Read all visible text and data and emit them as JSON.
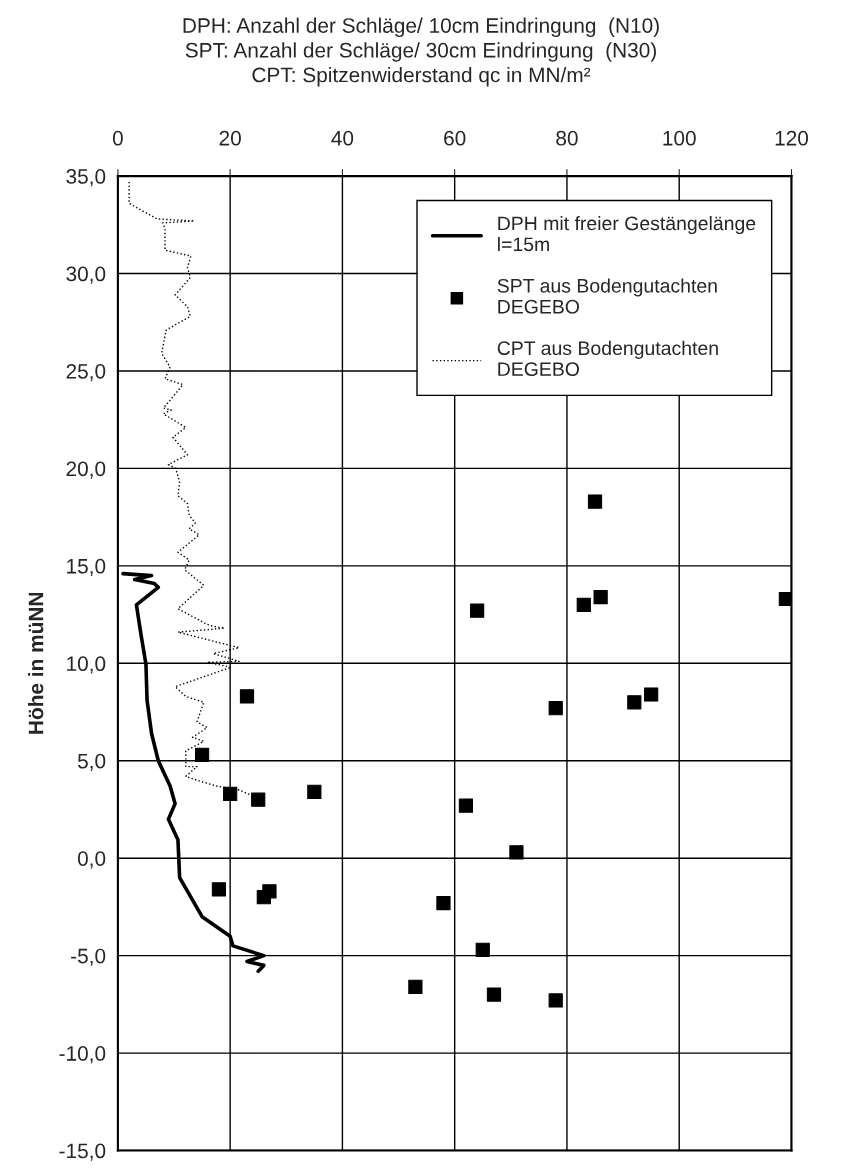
{
  "chart_data": {
    "type": "line",
    "title": "DPH: Anzahl der Schläge/ 10cm Eindringung  (N10)\nSPT: Anzahl der Schläge/ 30cm Eindringung  (N30)\nCPT: Spitzenwiderstand qc in MN/m²",
    "ylabel": "Höhe in müNN",
    "xlim": [
      0,
      120
    ],
    "xticks": [
      0,
      20,
      40,
      60,
      80,
      100,
      120
    ],
    "ylim": [
      -15,
      35
    ],
    "yticks": [
      {
        "value": 35,
        "label": "35,0"
      },
      {
        "value": 30,
        "label": "30,0"
      },
      {
        "value": 25,
        "label": "25,0"
      },
      {
        "value": 20,
        "label": "20,0"
      },
      {
        "value": 15,
        "label": "15,0"
      },
      {
        "value": 10,
        "label": "10,0"
      },
      {
        "value": 5,
        "label": "5,0"
      },
      {
        "value": 0,
        "label": "0,0"
      },
      {
        "value": -5,
        "label": "-5,0"
      },
      {
        "value": -10,
        "label": "-10,0"
      },
      {
        "value": -15,
        "label": "-15,0"
      }
    ],
    "grid": true,
    "legend": "top right",
    "series": [
      {
        "name": "DPH mit freier Gestängelänge\nl=15m",
        "color": "#000000",
        "line_style": "solid",
        "marker": "none",
        "x": [
          0.9,
          6,
          3,
          6.5,
          7.2,
          3.3,
          4.1,
          5.0,
          5.2,
          6.0,
          7.2,
          9.3,
          10.2,
          9.0,
          10.7,
          11,
          13,
          15,
          20,
          20.5,
          26,
          23,
          26,
          25
        ],
        "values": [
          14.6,
          14.5,
          14.3,
          14.1,
          13.9,
          13.0,
          11.5,
          9.95,
          8.1,
          6.4,
          5.0,
          3.7,
          2.8,
          2.0,
          0.95,
          -1,
          -2,
          -3,
          -4,
          -4.5,
          -5,
          -5.3,
          -5.5,
          -5.8
        ]
      },
      {
        "name": "SPT aus Bodengutachten\nDEGEBO",
        "type": "scatter",
        "color": "#000000",
        "marker": "square",
        "x": [
          85,
          64,
          83,
          86,
          119,
          23,
          78,
          92,
          95,
          15,
          20,
          25,
          35,
          62,
          71,
          18,
          27,
          26,
          58,
          65,
          53,
          67,
          78
        ],
        "values": [
          18.3,
          12.7,
          13.0,
          13.4,
          13.3,
          8.3,
          7.7,
          8.0,
          8.4,
          5.3,
          3.3,
          3.0,
          3.4,
          2.7,
          0.3,
          -1.6,
          -1.7,
          -2.0,
          -2.3,
          -4.7,
          -6.6,
          -7.0,
          -7.3
        ]
      },
      {
        "name": "CPT aus Bodengutachten\nDEGEBO",
        "color": "#000000",
        "line_style": "dotted",
        "marker": "none",
        "x": [
          2.0,
          2.0,
          7,
          13.6,
          8,
          8.4,
          8.4,
          13,
          12.4,
          12.9,
          10.2,
          12.4,
          12.9,
          8.6,
          7.8,
          9.3,
          8.4,
          11.6,
          9.3,
          8.1,
          9.5,
          8.1,
          12.1,
          9.8,
          12.4,
          9.0,
          10.3,
          11.0,
          10.7,
          12.4,
          12.7,
          13.8,
          12.7,
          14.5,
          10.7,
          12.7,
          11.9,
          15.3,
          10.7,
          15.9,
          17.0,
          19.0,
          10.7,
          21.6,
          17.0,
          21.6,
          15.9,
          20.2,
          10.2,
          12.1,
          15.3,
          14.1,
          15.9,
          13.3,
          15.3,
          12.1,
          12.1,
          14.1,
          12.1,
          14.1,
          17.6,
          21.6,
          24.0,
          25.0
        ],
        "values": [
          34.7,
          33.6,
          32.8,
          32.7,
          32.6,
          32.3,
          31.2,
          30.9,
          30.3,
          29.8,
          28.9,
          28.3,
          27.8,
          27.1,
          25.9,
          25.2,
          24.6,
          24.3,
          23.5,
          23.1,
          23.0,
          22.8,
          22.1,
          21.6,
          20.7,
          20.2,
          20.0,
          19.3,
          18.6,
          18.2,
          17.6,
          17.2,
          16.9,
          16.6,
          15.7,
          15.3,
          14.8,
          14.0,
          12.8,
          12.0,
          11.9,
          11.8,
          11.6,
          10.8,
          10.5,
          10.1,
          10.05,
          9.8,
          8.8,
          8.3,
          8.0,
          7.0,
          6.7,
          6.2,
          6.0,
          5.5,
          4.7,
          4.7,
          4.2,
          4.0,
          3.7,
          3.5,
          3.2,
          3.0
        ]
      }
    ]
  }
}
